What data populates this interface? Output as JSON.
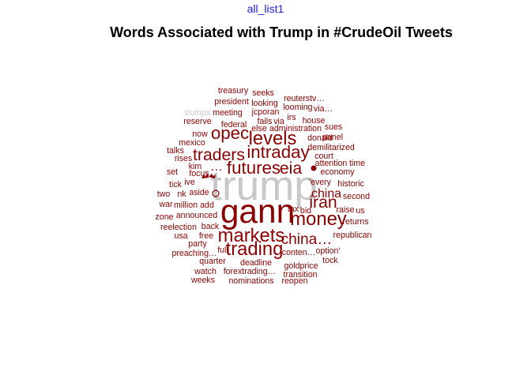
{
  "header": {
    "tab_label": "all_list1"
  },
  "chart_data": {
    "type": "wordcloud",
    "title": "Words Associated with Trump in #CrudeOil Tweets",
    "colors": {
      "primary": "#8b0000",
      "dominant": "#c8c8c8"
    },
    "words": [
      {
        "text": "trump",
        "weight": 10.0,
        "color": "#c8c8c8"
      },
      {
        "text": "gann",
        "weight": 8.0
      },
      {
        "text": "markets",
        "weight": 4.5
      },
      {
        "text": "trading",
        "weight": 4.5
      },
      {
        "text": "money",
        "weight": 4.5
      },
      {
        "text": "levels",
        "weight": 4.5
      },
      {
        "text": "futures",
        "weight": 4.2
      },
      {
        "text": "intraday",
        "weight": 4.2
      },
      {
        "text": "opec",
        "weight": 4.2
      },
      {
        "text": "traders",
        "weight": 4.0
      },
      {
        "text": "eia",
        "weight": 4.0
      },
      {
        "text": "iran",
        "weight": 4.0
      },
      {
        "text": "china…",
        "weight": 3.6
      },
      {
        "text": "china",
        "weight": 3.0
      },
      {
        "text": "…",
        "weight": 3.0
      },
      {
        "text": "treasury",
        "weight": 2.0
      },
      {
        "text": "seeks",
        "weight": 2.0
      },
      {
        "text": "reuterstv…",
        "weight": 2.0
      },
      {
        "text": "president",
        "weight": 2.0
      },
      {
        "text": "looking",
        "weight": 2.0
      },
      {
        "text": "looming",
        "weight": 2.0
      },
      {
        "text": "via…",
        "weight": 2.0
      },
      {
        "text": "trumps",
        "weight": 2.0,
        "color": "#c8c8c8"
      },
      {
        "text": "meeting",
        "weight": 2.0
      },
      {
        "text": "jcporan",
        "weight": 2.0
      },
      {
        "text": "irs",
        "weight": 2.0
      },
      {
        "text": "house",
        "weight": 2.0
      },
      {
        "text": "reserve",
        "weight": 2.0
      },
      {
        "text": "federal",
        "weight": 2.0
      },
      {
        "text": "fails",
        "weight": 2.0
      },
      {
        "text": "via",
        "weight": 2.0
      },
      {
        "text": "sues",
        "weight": 2.0
      },
      {
        "text": "else",
        "weight": 2.0
      },
      {
        "text": "administration",
        "weight": 2.0
      },
      {
        "text": "now",
        "weight": 2.0
      },
      {
        "text": "donald",
        "weight": 2.0
      },
      {
        "text": "panel",
        "weight": 2.0
      },
      {
        "text": "mexico",
        "weight": 2.0
      },
      {
        "text": "demilitarized",
        "weight": 2.0
      },
      {
        "text": "talks",
        "weight": 2.0
      },
      {
        "text": "court",
        "weight": 2.0
      },
      {
        "text": "rises",
        "weight": 2.0
      },
      {
        "text": "attention",
        "weight": 2.0
      },
      {
        "text": "time",
        "weight": 2.0
      },
      {
        "text": "kim",
        "weight": 2.0
      },
      {
        "text": "set",
        "weight": 2.0
      },
      {
        "text": "focus",
        "weight": 2.0
      },
      {
        "text": "economy",
        "weight": 2.0
      },
      {
        "text": "tick",
        "weight": 2.0
      },
      {
        "text": "ive",
        "weight": 2.0
      },
      {
        "text": "'every",
        "weight": 2.0
      },
      {
        "text": "historic",
        "weight": 2.0
      },
      {
        "text": "two",
        "weight": 2.0
      },
      {
        "text": "nk",
        "weight": 2.0
      },
      {
        "text": "aside",
        "weight": 2.0
      },
      {
        "text": "second",
        "weight": 2.0
      },
      {
        "text": "war",
        "weight": 2.0
      },
      {
        "text": "million",
        "weight": 2.0
      },
      {
        "text": "add",
        "weight": 2.0
      },
      {
        "text": "tax",
        "weight": 2.0
      },
      {
        "text": "raise",
        "weight": 2.0
      },
      {
        "text": "us",
        "weight": 2.0
      },
      {
        "text": "bid",
        "weight": 2.0
      },
      {
        "text": "zone",
        "weight": 2.0
      },
      {
        "text": "announced",
        "weight": 2.0
      },
      {
        "text": "returns",
        "weight": 2.0
      },
      {
        "text": "reelection",
        "weight": 2.0
      },
      {
        "text": "back",
        "weight": 2.0
      },
      {
        "text": "usa",
        "weight": 2.0
      },
      {
        "text": "free",
        "weight": 2.0
      },
      {
        "text": "republican",
        "weight": 2.0
      },
      {
        "text": "party",
        "weight": 2.0
      },
      {
        "text": "preaching…",
        "weight": 2.0
      },
      {
        "text": "full",
        "weight": 2.0
      },
      {
        "text": "conten…",
        "weight": 2.0
      },
      {
        "text": "option'",
        "weight": 2.0
      },
      {
        "text": "quarter",
        "weight": 2.0
      },
      {
        "text": "deadline",
        "weight": 2.0
      },
      {
        "text": "tock",
        "weight": 2.0
      },
      {
        "text": "goldprice",
        "weight": 2.0
      },
      {
        "text": "watch",
        "weight": 2.0
      },
      {
        "text": "forextrading…",
        "weight": 2.0
      },
      {
        "text": "transition",
        "weight": 2.0
      },
      {
        "text": "weeks",
        "weight": 2.0
      },
      {
        "text": "nominations",
        "weight": 2.0
      },
      {
        "text": "reopen",
        "weight": 2.0
      }
    ]
  }
}
